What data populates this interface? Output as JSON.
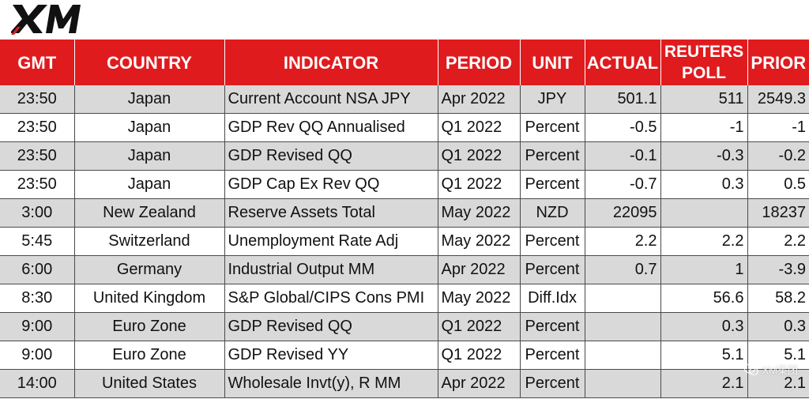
{
  "brand": {
    "logo_text": "XM",
    "accent_color": "#e01b1e"
  },
  "columns": {
    "gmt": "GMT",
    "country": "COUNTRY",
    "indicator": "INDICATOR",
    "period": "PERIOD",
    "unit": "UNIT",
    "actual": "ACTUAL",
    "poll_line1": "REUTERS",
    "poll_line2": "POLL",
    "prior": "PRIOR"
  },
  "rows": [
    {
      "gmt": "23:50",
      "country": "Japan",
      "indicator": "Current Account NSA JPY",
      "period": "Apr 2022",
      "unit": "JPY",
      "actual": "501.1",
      "poll": "511",
      "prior": "2549.3"
    },
    {
      "gmt": "23:50",
      "country": "Japan",
      "indicator": "GDP Rev QQ Annualised",
      "period": "Q1 2022",
      "unit": "Percent",
      "actual": "-0.5",
      "poll": "-1",
      "prior": "-1"
    },
    {
      "gmt": "23:50",
      "country": "Japan",
      "indicator": "GDP Revised QQ",
      "period": "Q1 2022",
      "unit": "Percent",
      "actual": "-0.1",
      "poll": "-0.3",
      "prior": "-0.2"
    },
    {
      "gmt": "23:50",
      "country": "Japan",
      "indicator": "GDP Cap Ex Rev QQ",
      "period": "Q1 2022",
      "unit": "Percent",
      "actual": "-0.7",
      "poll": "0.3",
      "prior": "0.5"
    },
    {
      "gmt": "3:00",
      "country": "New Zealand",
      "indicator": "Reserve Assets Total",
      "period": "May 2022",
      "unit": "NZD",
      "actual": "22095",
      "poll": "",
      "prior": "18237"
    },
    {
      "gmt": "5:45",
      "country": "Switzerland",
      "indicator": "Unemployment Rate Adj",
      "period": "May 2022",
      "unit": "Percent",
      "actual": "2.2",
      "poll": "2.2",
      "prior": "2.2"
    },
    {
      "gmt": "6:00",
      "country": "Germany",
      "indicator": "Industrial Output MM",
      "period": "Apr 2022",
      "unit": "Percent",
      "actual": "0.7",
      "poll": "1",
      "prior": "-3.9"
    },
    {
      "gmt": "8:30",
      "country": "United Kingdom",
      "indicator": "S&P Global/CIPS Cons PMI",
      "period": "May 2022",
      "unit": "Diff.Idx",
      "actual": "",
      "poll": "56.6",
      "prior": "58.2"
    },
    {
      "gmt": "9:00",
      "country": "Euro Zone",
      "indicator": "GDP Revised QQ",
      "period": "Q1 2022",
      "unit": "Percent",
      "actual": "",
      "poll": "0.3",
      "prior": "0.3"
    },
    {
      "gmt": "9:00",
      "country": "Euro Zone",
      "indicator": "GDP Revised YY",
      "period": "Q1 2022",
      "unit": "Percent",
      "actual": "",
      "poll": "5.1",
      "prior": "5.1"
    },
    {
      "gmt": "14:00",
      "country": "United States",
      "indicator": "Wholesale Invt(y), R MM",
      "period": "Apr 2022",
      "unit": "Percent",
      "actual": "",
      "poll": "2.1",
      "prior": "2.1"
    }
  ],
  "watermark": {
    "text": "XM集团",
    "icon": "wechat-icon"
  }
}
